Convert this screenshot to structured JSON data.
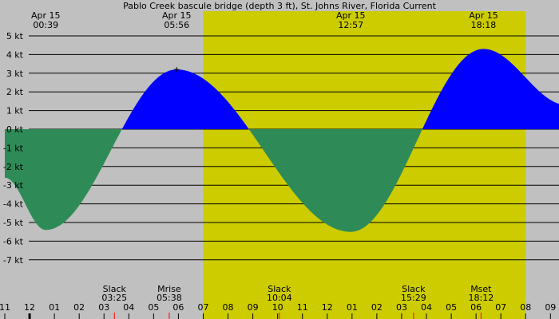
{
  "chart_data": {
    "type": "area",
    "title": "Pablo Creek bascule bridge (depth 3 ft), St. Johns River, Florida Current",
    "ylim": [
      -8,
      5.5
    ],
    "y_ticks": [
      {
        "value": 5,
        "label": "5 kt"
      },
      {
        "value": 4,
        "label": "4 kt"
      },
      {
        "value": 3,
        "label": "3 kt"
      },
      {
        "value": 2,
        "label": "2 kt"
      },
      {
        "value": 1,
        "label": "1 kt"
      },
      {
        "value": 0,
        "label": "0 kt"
      },
      {
        "value": -1,
        "label": "-1 kt"
      },
      {
        "value": -2,
        "label": "-2 kt"
      },
      {
        "value": -3,
        "label": "-3 kt"
      },
      {
        "value": -4,
        "label": "-4 kt"
      },
      {
        "value": -5,
        "label": "-5 kt"
      },
      {
        "value": -6,
        "label": "-6 kt"
      },
      {
        "value": -7,
        "label": "-7 kt"
      }
    ],
    "x_hour_range": [
      -1.0,
      21.65
    ],
    "x_ticks": [
      {
        "hour": -1,
        "label": "11"
      },
      {
        "hour": 0,
        "label": "12"
      },
      {
        "hour": 1,
        "label": "01"
      },
      {
        "hour": 2,
        "label": "02"
      },
      {
        "hour": 3,
        "label": "03"
      },
      {
        "hour": 4,
        "label": "04"
      },
      {
        "hour": 5,
        "label": "05"
      },
      {
        "hour": 6,
        "label": "06"
      },
      {
        "hour": 7,
        "label": "07"
      },
      {
        "hour": 8,
        "label": "08"
      },
      {
        "hour": 9,
        "label": "09"
      },
      {
        "hour": 10,
        "label": "10"
      },
      {
        "hour": 11,
        "label": "11"
      },
      {
        "hour": 12,
        "label": "12"
      },
      {
        "hour": 13,
        "label": "01"
      },
      {
        "hour": 14,
        "label": "02"
      },
      {
        "hour": 15,
        "label": "03"
      },
      {
        "hour": 16,
        "label": "04"
      },
      {
        "hour": 17,
        "label": "05"
      },
      {
        "hour": 18,
        "label": "06"
      },
      {
        "hour": 19,
        "label": "07"
      },
      {
        "hour": 20,
        "label": "08"
      },
      {
        "hour": 21,
        "label": "09"
      }
    ],
    "daylight": {
      "start_hour": 7.0,
      "end_hour": 20.0
    },
    "extremes": [
      {
        "date": "Apr 15",
        "time": "00:39",
        "hour": 0.65,
        "value": -5.4
      },
      {
        "date": "Apr 15",
        "time": "05:56",
        "hour": 5.93,
        "value": 3.2
      },
      {
        "date": "Apr 15",
        "time": "12:57",
        "hour": 12.95,
        "value": -5.5
      },
      {
        "date": "Apr 15",
        "time": "18:18",
        "hour": 18.3,
        "value": 4.3
      }
    ],
    "curve_start": {
      "hour": -1.0,
      "value": -2.6
    },
    "curve_end": {
      "hour": 21.65,
      "value": 1.3
    },
    "slack_events": [
      {
        "label": "Slack",
        "time": "03:25",
        "hour": 3.42
      },
      {
        "label": "Slack",
        "time": "10:04",
        "hour": 10.07
      },
      {
        "label": "Slack",
        "time": "15:29",
        "hour": 15.48
      }
    ],
    "moon_events": [
      {
        "label": "Mrise",
        "time": "05:38",
        "hour": 5.63
      },
      {
        "label": "Mset",
        "time": "18:12",
        "hour": 18.2
      }
    ],
    "colors": {
      "background": "#c0c0c0",
      "daylight": "#cccc00",
      "flood": "#0000ff",
      "ebb": "#2e8b57",
      "gridline": "#000000",
      "event_tick": "#ff0000"
    }
  }
}
